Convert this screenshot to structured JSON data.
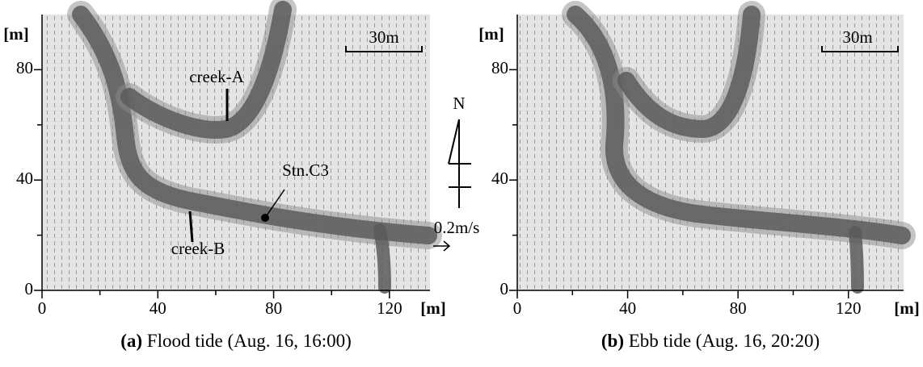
{
  "chart_data": [
    {
      "type": "vector_field",
      "caption_label": "(a)",
      "caption": "Flood tide (Aug. 16, 16:00)",
      "x_label": "[m]",
      "y_label": "[m]",
      "xlim": [
        0,
        134
      ],
      "ylim": [
        0,
        100
      ],
      "xticks": [
        0,
        40,
        80,
        120
      ],
      "xminor_ticks": [
        20,
        60,
        100
      ],
      "yticks": [
        0,
        40,
        80
      ],
      "yminor_ticks": [
        20,
        60
      ],
      "scale_bar_label": "30m",
      "annotations": [
        "creek-A",
        "creek-B",
        "Stn.C3"
      ]
    },
    {
      "type": "vector_field",
      "caption_label": "(b)",
      "caption": "Ebb tide (Aug. 16, 20:20)",
      "x_label": "[m]",
      "y_label": "[m]",
      "xlim": [
        0,
        140
      ],
      "ylim": [
        0,
        100
      ],
      "xticks": [
        0,
        40,
        80,
        120
      ],
      "xminor_ticks": [
        20,
        60,
        100
      ],
      "yticks": [
        0,
        40,
        80
      ],
      "yminor_ticks": [
        20,
        60
      ],
      "scale_bar_label": "30m",
      "annotations": []
    }
  ],
  "north_label": "N",
  "vector_scale_label": "0.2m/s"
}
